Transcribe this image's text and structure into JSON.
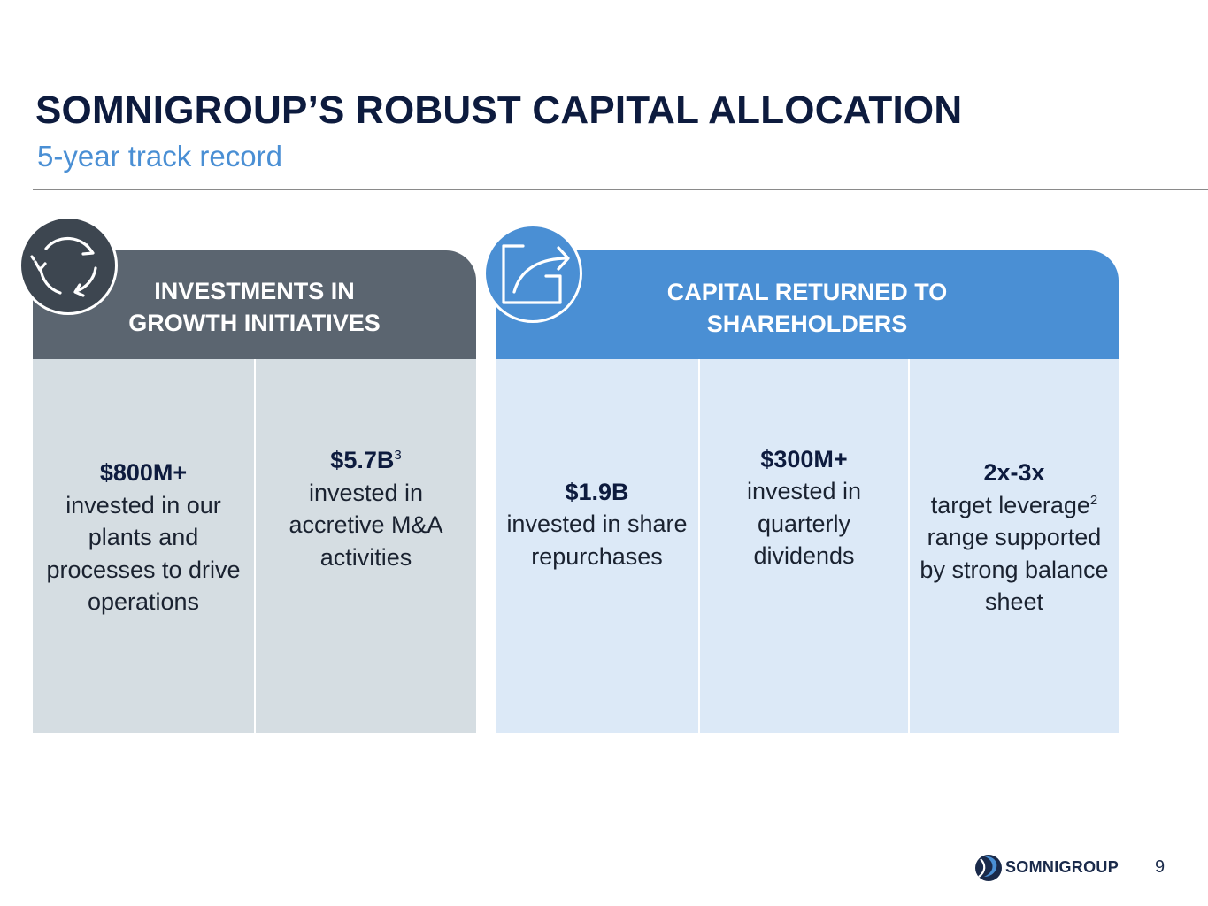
{
  "header": {
    "title": "SOMNIGROUP’S ROBUST CAPITAL ALLOCATION",
    "subtitle": "5-year track record"
  },
  "growth": {
    "heading": "INVESTMENTS IN GROWTH INITIATIVES",
    "icon": "refresh-cycle-icon",
    "cells": [
      {
        "value": "$800M+",
        "note": "",
        "text": "invested in our plants and processes to drive operations"
      },
      {
        "value": "$5.7B",
        "note": "3",
        "text": "invested in accretive M&A activities"
      }
    ]
  },
  "capital": {
    "heading": "CAPITAL RETURNED TO SHAREHOLDERS",
    "icon": "share-arrow-icon",
    "cells": [
      {
        "value": "$1.9B",
        "text": "invested in share repurchases"
      },
      {
        "value": "$300M+",
        "text": "invested in quarterly dividends"
      },
      {
        "value": "2x-3x",
        "text_pre": "target leverage",
        "note": "2",
        "text_post": "range supported by strong balance sheet"
      }
    ]
  },
  "footer": {
    "brand": "SOMNIGROUP",
    "page": "9"
  },
  "colors": {
    "navy": "#0d1b3e",
    "blue": "#4a8fd4",
    "slate": "#5b6570",
    "grey_cell": "#d5dde2",
    "blue_cell": "#dce9f7"
  }
}
